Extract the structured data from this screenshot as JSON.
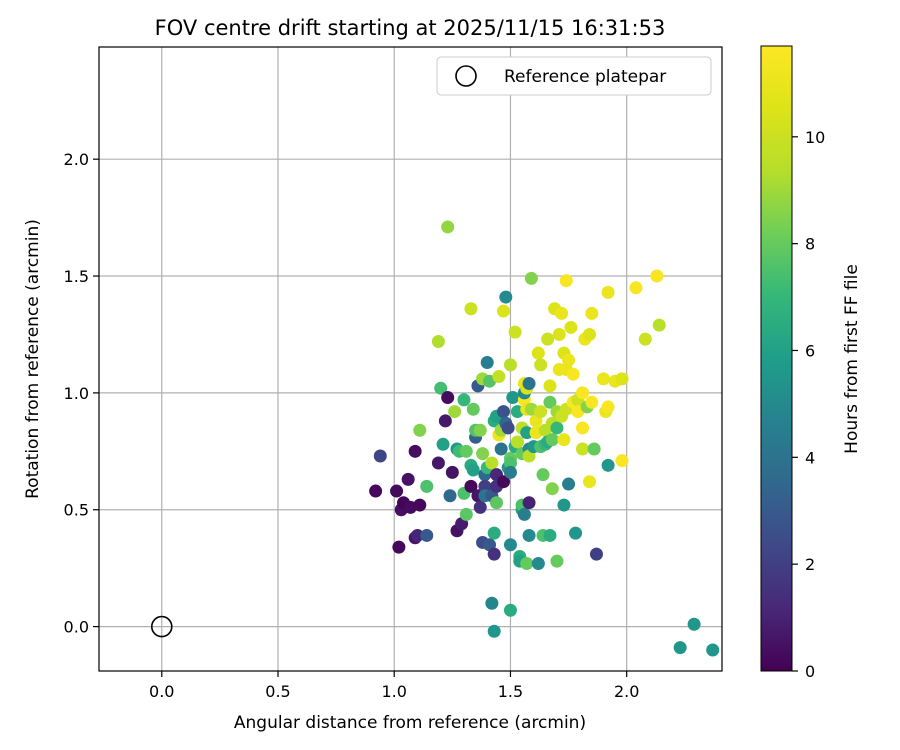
{
  "chart_data": {
    "type": "scatter",
    "title": "FOV centre drift starting at 2025/11/15 16:31:53",
    "xlabel": "Angular distance from reference (arcmin)",
    "ylabel": "Rotation from reference (arcmin)",
    "xlim": [
      -0.27,
      2.41
    ],
    "ylim": [
      -0.19,
      2.48
    ],
    "xticks": [
      0.0,
      0.5,
      1.0,
      1.5,
      2.0
    ],
    "yticks": [
      0.0,
      0.5,
      1.0,
      1.5,
      2.0
    ],
    "xtick_labels": [
      "0.0",
      "0.5",
      "1.0",
      "1.5",
      "2.0"
    ],
    "ytick_labels": [
      "0.0",
      "0.5",
      "1.0",
      "1.5",
      "2.0"
    ],
    "grid": true,
    "legend": {
      "position": "top-right",
      "entries": [
        "Reference platepar"
      ]
    },
    "reference_point": {
      "x": 0.0,
      "y": 0.0,
      "label": "Reference platepar"
    },
    "colorbar": {
      "label": "Hours from first FF file",
      "colormap": "viridis",
      "range": [
        0,
        11.7
      ],
      "ticks": [
        0,
        2,
        4,
        6,
        8,
        10
      ],
      "tick_labels": [
        "0",
        "2",
        "4",
        "6",
        "8",
        "10"
      ]
    },
    "points": [
      [
        0.92,
        0.58,
        0.2
      ],
      [
        0.94,
        0.73,
        2.2
      ],
      [
        1.01,
        0.58,
        0.3
      ],
      [
        1.02,
        0.34,
        0.2
      ],
      [
        1.03,
        0.5,
        0.4
      ],
      [
        1.04,
        0.53,
        0.1
      ],
      [
        1.06,
        0.63,
        0.5
      ],
      [
        1.07,
        0.51,
        0.3
      ],
      [
        1.09,
        0.38,
        0.6
      ],
      [
        1.09,
        0.75,
        0.4
      ],
      [
        1.1,
        0.39,
        1.1
      ],
      [
        1.11,
        0.52,
        0.2
      ],
      [
        1.11,
        0.84,
        8.5
      ],
      [
        1.14,
        0.39,
        3.0
      ],
      [
        1.14,
        0.6,
        7.5
      ],
      [
        1.19,
        0.7,
        0.7
      ],
      [
        1.19,
        1.22,
        9.3
      ],
      [
        1.2,
        1.02,
        7.3
      ],
      [
        1.21,
        0.78,
        6.0
      ],
      [
        1.22,
        0.88,
        0.7
      ],
      [
        1.23,
        0.98,
        0.3
      ],
      [
        1.23,
        1.71,
        8.8
      ],
      [
        1.24,
        0.56,
        3.5
      ],
      [
        1.25,
        0.66,
        0.5
      ],
      [
        1.26,
        0.92,
        9.0
      ],
      [
        1.27,
        0.76,
        5.6
      ],
      [
        1.27,
        0.41,
        0.5
      ],
      [
        1.28,
        0.75,
        7.2
      ],
      [
        1.29,
        0.44,
        0.8
      ],
      [
        1.3,
        0.97,
        7.0
      ],
      [
        1.3,
        0.57,
        7.5
      ],
      [
        1.31,
        0.75,
        8.0
      ],
      [
        1.31,
        0.48,
        7.8
      ],
      [
        1.33,
        0.6,
        0.2
      ],
      [
        1.33,
        1.36,
        10.0
      ],
      [
        1.33,
        0.69,
        6.5
      ],
      [
        1.34,
        0.67,
        6.0
      ],
      [
        1.34,
        0.93,
        8.0
      ],
      [
        1.35,
        0.81,
        3.2
      ],
      [
        1.35,
        0.84,
        7.6
      ],
      [
        1.36,
        0.56,
        0.6
      ],
      [
        1.36,
        1.03,
        3.0
      ],
      [
        1.37,
        0.51,
        1.5
      ],
      [
        1.37,
        0.84,
        8.5
      ],
      [
        1.38,
        0.74,
        8.5
      ],
      [
        1.38,
        0.36,
        2.5
      ],
      [
        1.38,
        1.06,
        9.0
      ],
      [
        1.39,
        0.65,
        3.5
      ],
      [
        1.39,
        0.6,
        2.0
      ],
      [
        1.39,
        0.56,
        4.0
      ],
      [
        1.4,
        1.13,
        4.5
      ],
      [
        1.4,
        0.68,
        7.0
      ],
      [
        1.41,
        1.05,
        7.7
      ],
      [
        1.41,
        0.35,
        3.0
      ],
      [
        1.42,
        0.1,
        4.8
      ],
      [
        1.42,
        0.7,
        9.5
      ],
      [
        1.42,
        0.56,
        3.0
      ],
      [
        1.43,
        -0.02,
        5.5
      ],
      [
        1.43,
        0.4,
        6.5
      ],
      [
        1.43,
        0.88,
        6.5
      ],
      [
        1.43,
        0.31,
        1.5
      ],
      [
        1.44,
        0.9,
        6.0
      ],
      [
        1.44,
        0.65,
        1.2
      ],
      [
        1.44,
        0.6,
        1.5
      ],
      [
        1.44,
        0.53,
        7.8
      ],
      [
        1.45,
        1.07,
        9.8
      ],
      [
        1.45,
        0.82,
        11.2
      ],
      [
        1.46,
        0.84,
        9.0
      ],
      [
        1.46,
        0.76,
        4.0
      ],
      [
        1.47,
        0.62,
        0.2
      ],
      [
        1.47,
        0.92,
        2.7
      ],
      [
        1.47,
        1.35,
        10.5
      ],
      [
        1.48,
        0.87,
        3.5
      ],
      [
        1.48,
        1.41,
        5.0
      ],
      [
        1.49,
        0.85,
        2.5
      ],
      [
        1.49,
        0.68,
        5.5
      ],
      [
        1.5,
        0.72,
        8.0
      ],
      [
        1.5,
        0.35,
        5.0
      ],
      [
        1.5,
        0.07,
        6.5
      ],
      [
        1.5,
        0.7,
        7.5
      ],
      [
        1.5,
        0.66,
        4.5
      ],
      [
        1.5,
        1.12,
        9.5
      ],
      [
        1.51,
        0.98,
        5.5
      ],
      [
        1.52,
        1.26,
        10.0
      ],
      [
        1.52,
        0.77,
        6.5
      ],
      [
        1.53,
        0.92,
        6.5
      ],
      [
        1.53,
        0.79,
        9.5
      ],
      [
        1.54,
        0.3,
        6.5
      ],
      [
        1.54,
        0.28,
        6.0
      ],
      [
        1.55,
        0.85,
        9.5
      ],
      [
        1.55,
        0.5,
        6.0
      ],
      [
        1.55,
        0.52,
        7.5
      ],
      [
        1.55,
        0.74,
        8.0
      ],
      [
        1.56,
        0.97,
        11.5
      ],
      [
        1.56,
        1.04,
        11.0
      ],
      [
        1.56,
        1.0,
        5.0
      ],
      [
        1.56,
        0.48,
        4.5
      ],
      [
        1.57,
        0.93,
        11.0
      ],
      [
        1.57,
        0.27,
        8.0
      ],
      [
        1.57,
        1.02,
        10.5
      ],
      [
        1.57,
        0.83,
        6.0
      ],
      [
        1.58,
        0.39,
        5.0
      ],
      [
        1.58,
        0.76,
        5.0
      ],
      [
        1.58,
        1.04,
        4.0
      ],
      [
        1.58,
        0.53,
        1.0
      ],
      [
        1.58,
        0.73,
        9.5
      ],
      [
        1.59,
        0.93,
        9.0
      ],
      [
        1.59,
        1.49,
        8.5
      ],
      [
        1.6,
        0.77,
        5.5
      ],
      [
        1.61,
        0.83,
        11.0
      ],
      [
        1.61,
        0.88,
        11.0
      ],
      [
        1.62,
        0.27,
        5.0
      ],
      [
        1.62,
        1.17,
        10.5
      ],
      [
        1.63,
        0.92,
        10.0
      ],
      [
        1.63,
        1.12,
        10.0
      ],
      [
        1.63,
        0.77,
        7.5
      ],
      [
        1.64,
        0.65,
        8.0
      ],
      [
        1.64,
        0.39,
        7.5
      ],
      [
        1.65,
        0.78,
        7.0
      ],
      [
        1.65,
        0.84,
        9.5
      ],
      [
        1.66,
        1.23,
        10.0
      ],
      [
        1.66,
        0.79,
        6.5
      ],
      [
        1.67,
        0.96,
        8.0
      ],
      [
        1.67,
        0.39,
        6.5
      ],
      [
        1.67,
        1.03,
        10.5
      ],
      [
        1.68,
        0.59,
        8.5
      ],
      [
        1.68,
        0.8,
        8.0
      ],
      [
        1.68,
        0.87,
        9.5
      ],
      [
        1.69,
        1.36,
        10.5
      ],
      [
        1.7,
        0.92,
        9.0
      ],
      [
        1.7,
        0.28,
        8.0
      ],
      [
        1.7,
        0.85,
        7.0
      ],
      [
        1.71,
        1.1,
        11.0
      ],
      [
        1.71,
        1.25,
        10.5
      ],
      [
        1.72,
        0.9,
        10.0
      ],
      [
        1.72,
        1.34,
        11.0
      ],
      [
        1.73,
        1.17,
        10.5
      ],
      [
        1.73,
        0.8,
        11.0
      ],
      [
        1.73,
        0.52,
        5.5
      ],
      [
        1.74,
        1.48,
        11.5
      ],
      [
        1.74,
        1.1,
        11.0
      ],
      [
        1.74,
        0.93,
        10.0
      ],
      [
        1.75,
        1.14,
        11.0
      ],
      [
        1.75,
        0.61,
        4.5
      ],
      [
        1.76,
        1.28,
        10.5
      ],
      [
        1.77,
        1.08,
        11.5
      ],
      [
        1.77,
        0.96,
        11.5
      ],
      [
        1.78,
        0.4,
        5.5
      ],
      [
        1.79,
        0.97,
        10.0
      ],
      [
        1.79,
        0.92,
        11.5
      ],
      [
        1.81,
        1.0,
        11.5
      ],
      [
        1.81,
        0.76,
        10.0
      ],
      [
        1.81,
        0.85,
        11.5
      ],
      [
        1.82,
        1.23,
        11.0
      ],
      [
        1.83,
        0.94,
        8.5
      ],
      [
        1.84,
        1.25,
        10.5
      ],
      [
        1.84,
        0.62,
        11.0
      ],
      [
        1.85,
        0.96,
        11.5
      ],
      [
        1.85,
        1.34,
        11.0
      ],
      [
        1.86,
        0.76,
        8.0
      ],
      [
        1.87,
        0.31,
        2.0
      ],
      [
        1.9,
        1.06,
        11.0
      ],
      [
        1.91,
        0.92,
        11.0
      ],
      [
        1.92,
        0.69,
        5.5
      ],
      [
        1.92,
        1.43,
        11.0
      ],
      [
        1.92,
        0.94,
        11.5
      ],
      [
        1.95,
        1.05,
        11.0
      ],
      [
        1.98,
        1.06,
        10.5
      ],
      [
        1.98,
        0.71,
        11.5
      ],
      [
        2.04,
        1.45,
        11.5
      ],
      [
        2.08,
        1.23,
        10.0
      ],
      [
        2.13,
        1.5,
        11.5
      ],
      [
        2.14,
        1.29,
        9.5
      ],
      [
        2.23,
        -0.09,
        5.5
      ],
      [
        2.29,
        0.01,
        5.5
      ],
      [
        2.37,
        -0.1,
        5.5
      ]
    ]
  }
}
